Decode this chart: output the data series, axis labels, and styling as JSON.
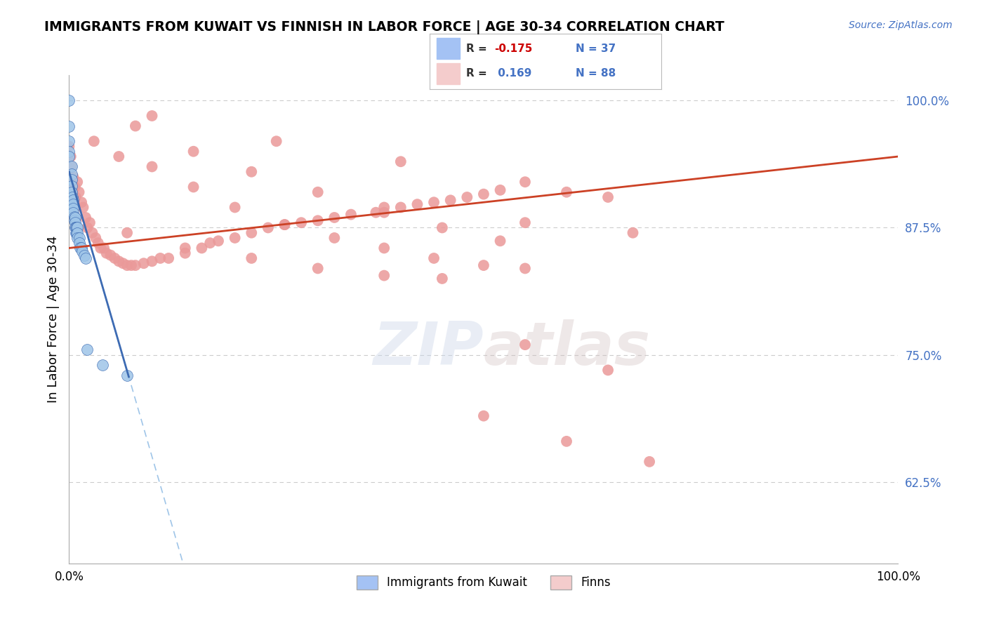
{
  "title": "IMMIGRANTS FROM KUWAIT VS FINNISH IN LABOR FORCE | AGE 30-34 CORRELATION CHART",
  "source": "Source: ZipAtlas.com",
  "ylabel": "In Labor Force | Age 30-34",
  "xmin": 0.0,
  "xmax": 1.0,
  "ymin": 0.545,
  "ymax": 1.025,
  "yticks": [
    0.625,
    0.75,
    0.875,
    1.0
  ],
  "ytick_labels": [
    "62.5%",
    "75.0%",
    "87.5%",
    "100.0%"
  ],
  "ytick_color": "#4472c4",
  "legend_label1": "Immigrants from Kuwait",
  "legend_label2": "Finns",
  "blue_dot_color": "#9fc5e8",
  "pink_dot_color": "#ea9999",
  "blue_fill": "#a4c2f4",
  "pink_fill": "#f4cccc",
  "trend_blue_color": "#3d6bb3",
  "trend_pink_color": "#cc4125",
  "trend_dashed_color": "#9fc5e8",
  "blue_r": -0.175,
  "blue_n": 37,
  "pink_r": 0.169,
  "pink_n": 88,
  "blue_scatter_x": [
    0.0,
    0.0,
    0.0,
    0.0,
    0.0,
    0.003,
    0.003,
    0.003,
    0.003,
    0.003,
    0.004,
    0.005,
    0.005,
    0.005,
    0.005,
    0.006,
    0.006,
    0.007,
    0.007,
    0.007,
    0.008,
    0.008,
    0.009,
    0.009,
    0.01,
    0.01,
    0.01,
    0.012,
    0.012,
    0.013,
    0.015,
    0.016,
    0.018,
    0.02,
    0.022,
    0.04,
    0.07
  ],
  "blue_scatter_y": [
    1.0,
    0.975,
    0.96,
    0.95,
    0.945,
    0.935,
    0.928,
    0.922,
    0.916,
    0.91,
    0.905,
    0.902,
    0.898,
    0.894,
    0.89,
    0.886,
    0.882,
    0.885,
    0.88,
    0.875,
    0.875,
    0.87,
    0.875,
    0.87,
    0.875,
    0.87,
    0.865,
    0.865,
    0.86,
    0.855,
    0.855,
    0.852,
    0.848,
    0.845,
    0.755,
    0.74,
    0.73
  ],
  "pink_scatter_x": [
    0.0,
    0.002,
    0.003,
    0.005,
    0.007,
    0.008,
    0.01,
    0.012,
    0.015,
    0.017,
    0.02,
    0.022,
    0.025,
    0.028,
    0.032,
    0.035,
    0.038,
    0.042,
    0.045,
    0.05,
    0.055,
    0.06,
    0.065,
    0.07,
    0.075,
    0.08,
    0.09,
    0.1,
    0.11,
    0.12,
    0.14,
    0.16,
    0.17,
    0.18,
    0.2,
    0.22,
    0.24,
    0.26,
    0.28,
    0.3,
    0.32,
    0.34,
    0.37,
    0.4,
    0.42,
    0.44,
    0.46,
    0.48,
    0.5,
    0.52,
    0.03,
    0.06,
    0.1,
    0.15,
    0.2,
    0.26,
    0.32,
    0.38,
    0.44,
    0.5,
    0.55,
    0.08,
    0.15,
    0.22,
    0.3,
    0.38,
    0.45,
    0.52,
    0.07,
    0.14,
    0.22,
    0.3,
    0.38,
    0.45,
    0.1,
    0.25,
    0.4,
    0.55,
    0.6,
    0.65,
    0.5,
    0.6,
    0.7,
    0.55,
    0.65,
    0.38,
    0.55,
    0.68
  ],
  "pink_scatter_y": [
    0.955,
    0.945,
    0.935,
    0.925,
    0.915,
    0.905,
    0.92,
    0.91,
    0.9,
    0.895,
    0.885,
    0.875,
    0.88,
    0.87,
    0.865,
    0.86,
    0.855,
    0.855,
    0.85,
    0.848,
    0.845,
    0.842,
    0.84,
    0.838,
    0.838,
    0.838,
    0.84,
    0.842,
    0.845,
    0.845,
    0.85,
    0.855,
    0.86,
    0.862,
    0.865,
    0.87,
    0.875,
    0.878,
    0.88,
    0.882,
    0.885,
    0.888,
    0.89,
    0.895,
    0.898,
    0.9,
    0.902,
    0.905,
    0.908,
    0.912,
    0.96,
    0.945,
    0.935,
    0.915,
    0.895,
    0.878,
    0.865,
    0.855,
    0.845,
    0.838,
    0.835,
    0.975,
    0.95,
    0.93,
    0.91,
    0.89,
    0.875,
    0.862,
    0.87,
    0.855,
    0.845,
    0.835,
    0.828,
    0.825,
    0.985,
    0.96,
    0.94,
    0.92,
    0.91,
    0.905,
    0.69,
    0.665,
    0.645,
    0.76,
    0.735,
    0.895,
    0.88,
    0.87
  ]
}
